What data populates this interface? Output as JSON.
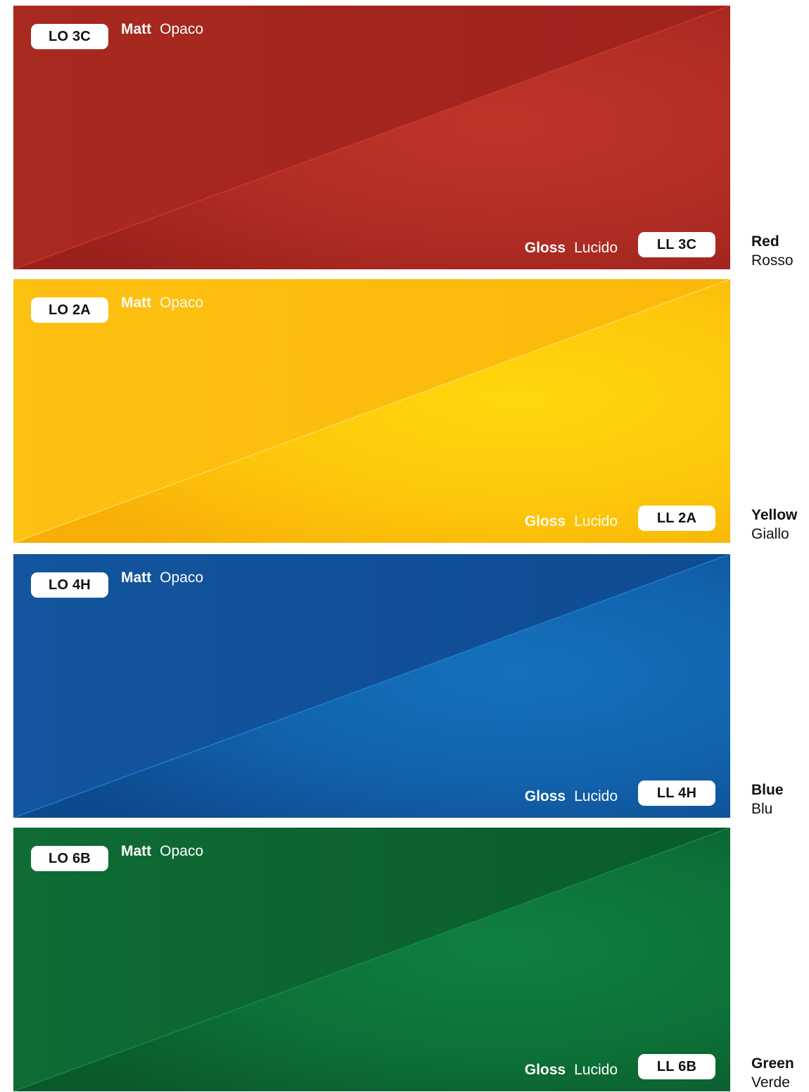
{
  "swatches": [
    {
      "id": "red",
      "matt_code": "LO 3C",
      "gloss_code": "LL 3C",
      "matt_label": "Matt",
      "matt_label_it": "Opaco",
      "gloss_label": "Gloss",
      "gloss_label_it": "Lucido",
      "name_en": "Red",
      "name_it": "Rosso",
      "colors": {
        "base": "#A52820",
        "dark": "#9A2119",
        "light": "#C0342A",
        "edge": "#D23B30"
      }
    },
    {
      "id": "yellow",
      "matt_code": "LO 2A",
      "gloss_code": "LL 2A",
      "matt_label": "Matt",
      "matt_label_it": "Opaco",
      "gloss_label": "Gloss",
      "gloss_label_it": "Lucido",
      "name_en": "Yellow",
      "name_it": "Giallo",
      "colors": {
        "base": "#FDC010",
        "dark": "#F7AE07",
        "light": "#FFD60D",
        "edge": "#FFE066"
      }
    },
    {
      "id": "blue",
      "matt_code": "LO 4H",
      "gloss_code": "LL 4H",
      "matt_label": "Matt",
      "matt_label_it": "Opaco",
      "gloss_label": "Gloss",
      "gloss_label_it": "Lucido",
      "name_en": "Blue",
      "name_it": "Blu",
      "colors": {
        "base": "#12539C",
        "dark": "#0E4A8E",
        "light": "#1570BC",
        "edge": "#1E82D6"
      }
    },
    {
      "id": "green",
      "matt_code": "LO 6B",
      "gloss_code": "LL 6B",
      "matt_label": "Matt",
      "matt_label_it": "Opaco",
      "gloss_label": "Gloss",
      "gloss_label_it": "Lucido",
      "name_en": "Green",
      "name_it": "Verde",
      "colors": {
        "base": "#0E6A34",
        "dark": "#0A5A2C",
        "light": "#0F7E41",
        "edge": "#159048"
      }
    }
  ]
}
